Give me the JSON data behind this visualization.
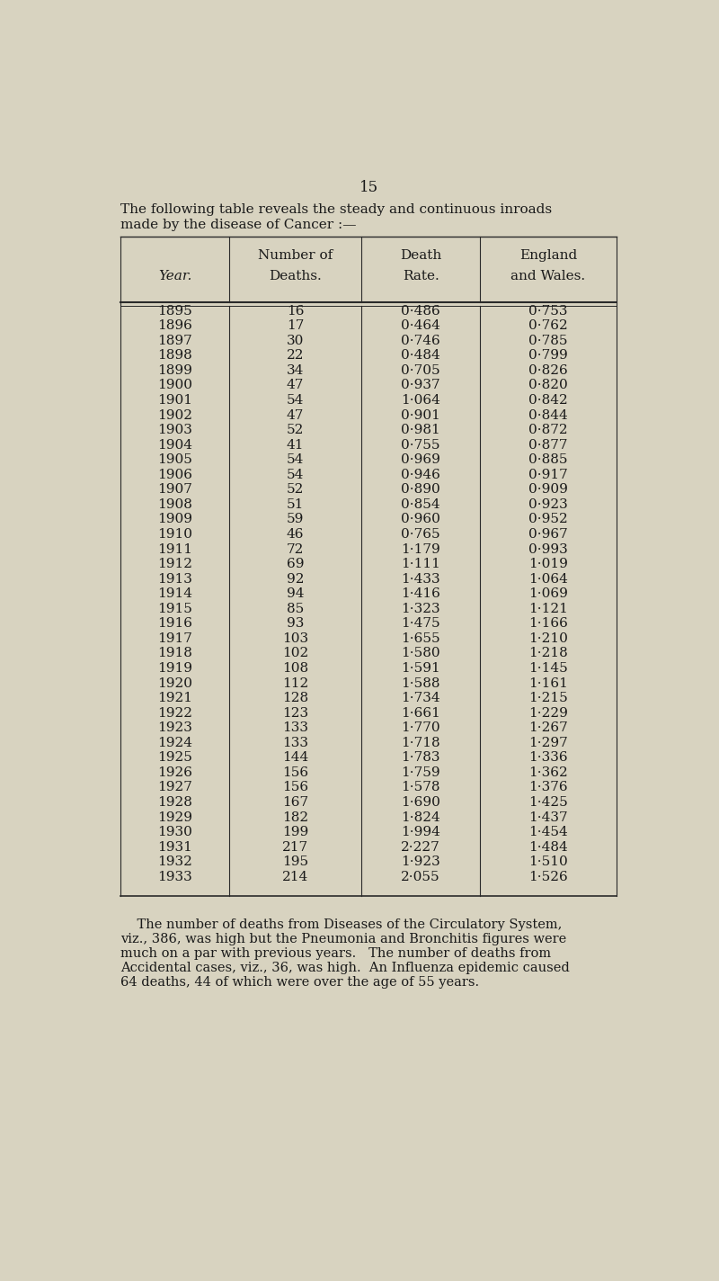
{
  "page_number": "15",
  "intro_line1": "The following table reveals the steady and continuous inroads",
  "intro_line2": "made by the disease of Cancer :—",
  "col_headers_row1": [
    "",
    "Number of",
    "Death",
    "England"
  ],
  "col_headers_row2": [
    "Year.",
    "Deaths.",
    "Rate.",
    "and Wales."
  ],
  "rows": [
    [
      "1895",
      "16",
      "0·486",
      "0·753"
    ],
    [
      "1896",
      "17",
      "0·464",
      "0·762"
    ],
    [
      "1897",
      "30",
      "0·746",
      "0·785"
    ],
    [
      "1898",
      "22",
      "0·484",
      "0·799"
    ],
    [
      "1899",
      "34",
      "0·705",
      "0·826"
    ],
    [
      "1900",
      "47",
      "0·937",
      "0·820"
    ],
    [
      "1901",
      "54",
      "1·064",
      "0·842"
    ],
    [
      "1902",
      "47",
      "0·901",
      "0·844"
    ],
    [
      "1903",
      "52",
      "0·981",
      "0·872"
    ],
    [
      "1904",
      "41",
      "0·755",
      "0·877"
    ],
    [
      "1905",
      "54",
      "0·969",
      "0·885"
    ],
    [
      "1906",
      "54",
      "0·946",
      "0·917"
    ],
    [
      "1907",
      "52",
      "0·890",
      "0·909"
    ],
    [
      "1908",
      "51",
      "0·854",
      "0·923"
    ],
    [
      "1909",
      "59",
      "0·960",
      "0·952"
    ],
    [
      "1910",
      "46",
      "0·765",
      "0·967"
    ],
    [
      "1911",
      "72",
      "1·179",
      "0·993"
    ],
    [
      "1912",
      "69",
      "1·111",
      "1·019"
    ],
    [
      "1913",
      "92",
      "1·433",
      "1·064"
    ],
    [
      "1914",
      "94",
      "1·416",
      "1·069"
    ],
    [
      "1915",
      "85",
      "1·323",
      "1·121"
    ],
    [
      "1916",
      "93",
      "1·475",
      "1·166"
    ],
    [
      "1917",
      "103",
      "1·655",
      "1·210"
    ],
    [
      "1918",
      "102",
      "1·580",
      "1·218"
    ],
    [
      "1919",
      "108",
      "1·591",
      "1·145"
    ],
    [
      "1920",
      "112",
      "1·588",
      "1·161"
    ],
    [
      "1921",
      "128",
      "1·734",
      "1·215"
    ],
    [
      "1922",
      "123",
      "1·661",
      "1·229"
    ],
    [
      "1923",
      "133",
      "1·770",
      "1·267"
    ],
    [
      "1924",
      "133",
      "1·718",
      "1·297"
    ],
    [
      "1925",
      "144",
      "1·783",
      "1·336"
    ],
    [
      "1926",
      "156",
      "1·759",
      "1·362"
    ],
    [
      "1927",
      "156",
      "1·578",
      "1·376"
    ],
    [
      "1928",
      "167",
      "1·690",
      "1·425"
    ],
    [
      "1929",
      "182",
      "1·824",
      "1·437"
    ],
    [
      "1930",
      "199",
      "1·994",
      "1·454"
    ],
    [
      "1931",
      "217",
      "2·227",
      "1·484"
    ],
    [
      "1932",
      "195",
      "1·923",
      "1·510"
    ],
    [
      "1933",
      "214",
      "2·055",
      "1·526"
    ]
  ],
  "footer_lines": [
    "    The number of deaths from Diseases of the Circulatory System,",
    "viz., 386, was high but the Pneumonia and Bronchitis figures were",
    "much on a par with previous years.   The number of deaths from",
    "Accidental cases, viz., 36, was high.  An Influenza epidemic caused",
    "64 deaths, 44 of which were over the age of 55 years."
  ],
  "bg_color": "#d8d3c0",
  "text_color": "#1a1a1a",
  "line_color": "#2a2a2a",
  "font_size": 11.0,
  "page_num_fontsize": 12.0
}
